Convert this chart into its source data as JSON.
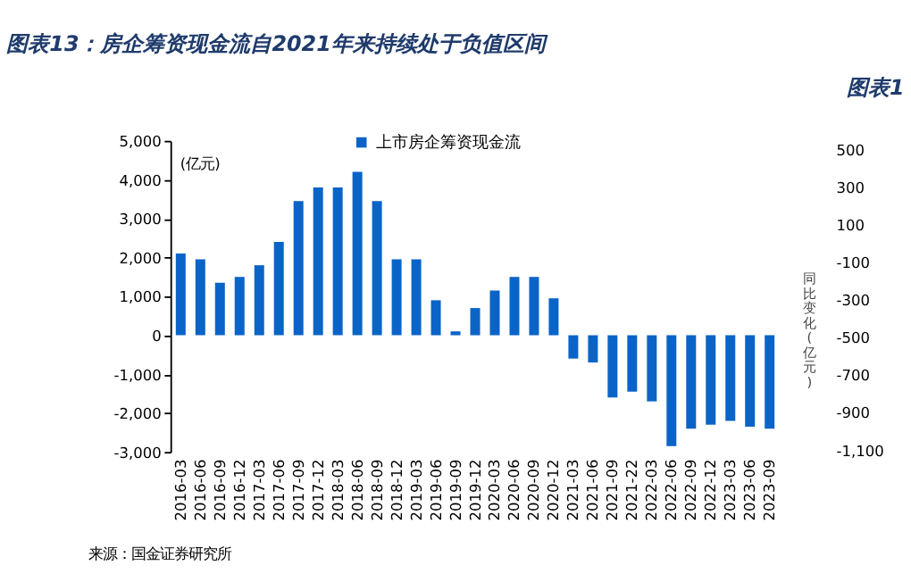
{
  "chart_data": {
    "type": "bar",
    "title": "图表13：房企筹资现金流自2021年来持续处于负值区间",
    "categories": [
      "2016-03",
      "2016-06",
      "2016-09",
      "2016-12",
      "2017-03",
      "2017-06",
      "2017-09",
      "2017-12",
      "2018-03",
      "2018-06",
      "2018-09",
      "2018-12",
      "2019-03",
      "2019-06",
      "2019-09",
      "2019-12",
      "2020-03",
      "2020-06",
      "2020-09",
      "2020-12",
      "2021-03",
      "2021-06",
      "2021-09",
      "2021-22",
      "2022-03",
      "2022-06",
      "2022-09",
      "2022-12",
      "2023-03",
      "2023-06",
      "2023-09"
    ],
    "series": [
      {
        "name": "上市房企筹资现金流",
        "color": "#0a64c8",
        "values": [
          2100,
          1950,
          1350,
          1500,
          1800,
          2400,
          3450,
          3800,
          3800,
          4200,
          3450,
          1950,
          1950,
          900,
          100,
          700,
          1150,
          1500,
          1500,
          950,
          -600,
          -700,
          -1600,
          -1450,
          -1700,
          -2850,
          -2400,
          -2300,
          -2200,
          -2350,
          -2400
        ]
      }
    ],
    "ylabel": "(亿元)",
    "y2label": "同比变化(亿元)",
    "ylim": [
      -3000,
      5000
    ],
    "yticks": [
      {
        "value": -3000,
        "label": "-3,000"
      },
      {
        "value": -2000,
        "label": "-2,000"
      },
      {
        "value": -1000,
        "label": "-1,000"
      },
      0,
      {
        "value": 1000,
        "label": "1,000"
      },
      {
        "value": 2000,
        "label": "2,000"
      },
      {
        "value": 3000,
        "label": "3,000"
      },
      {
        "value": 4000,
        "label": "4,000"
      },
      {
        "value": 5000,
        "label": "5,000"
      }
    ],
    "y2lim": [
      -1110,
      545
    ],
    "y2ticks": [
      {
        "value": -1100,
        "label": "-1,100"
      },
      -900,
      -700,
      -500,
      -300,
      -100,
      100,
      300,
      500
    ],
    "legend": "top",
    "grid": false,
    "annotations": [
      "图表1",
      "来源：国金证券研究所"
    ]
  }
}
